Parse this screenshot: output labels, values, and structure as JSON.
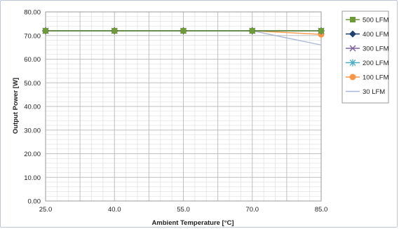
{
  "chart_data": {
    "type": "line",
    "title": "",
    "xlabel": "Ambient Temperature [°C]",
    "ylabel": "Output Power [W]",
    "x": [
      25,
      40,
      55,
      70,
      85
    ],
    "x_tick_labels": [
      "25.0",
      "40.0",
      "55.0",
      "70.0",
      "85.0"
    ],
    "xlim": [
      25,
      85
    ],
    "ylim": [
      0,
      80
    ],
    "y_tick_labels": [
      "0.00",
      "10.00",
      "20.00",
      "30.00",
      "40.00",
      "50.00",
      "60.00",
      "70.00",
      "80.00"
    ],
    "grid": true,
    "legend_position": "top-right",
    "series": [
      {
        "name": "500 LFM",
        "values": [
          72,
          72,
          72,
          72,
          72
        ],
        "color": "#6f9a3a",
        "marker": "square"
      },
      {
        "name": "400 LFM",
        "values": [
          72,
          72,
          72,
          72,
          72
        ],
        "color": "#1f3f6e",
        "marker": "diamond"
      },
      {
        "name": "300 LFM",
        "values": [
          72,
          72,
          72,
          72,
          72
        ],
        "color": "#8064a2",
        "marker": "x"
      },
      {
        "name": "200 LFM",
        "values": [
          72,
          72,
          72,
          72,
          72
        ],
        "color": "#4bacc6",
        "marker": "star"
      },
      {
        "name": "100 LFM",
        "values": [
          72,
          72,
          72,
          72,
          70.5
        ],
        "color": "#f79646",
        "marker": "circle"
      },
      {
        "name": "30 LFM",
        "values": [
          72,
          72,
          72,
          72,
          66
        ],
        "color": "#a9b8d6",
        "marker": "none"
      }
    ]
  }
}
